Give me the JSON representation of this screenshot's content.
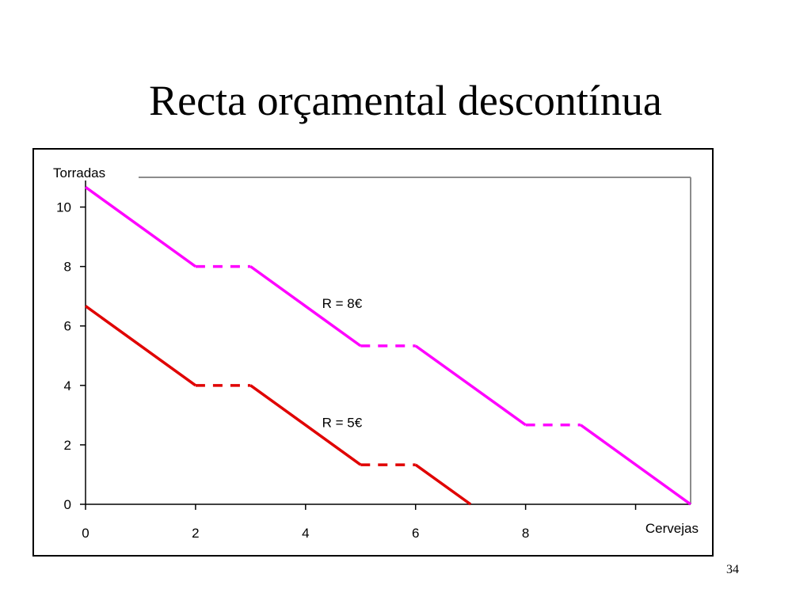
{
  "slide": {
    "title": "Recta orçamental descontínua",
    "page_number": "34"
  },
  "chart_data": {
    "type": "line",
    "xlabel": "Cervejas",
    "ylabel": "Torradas",
    "xlim": [
      0,
      11
    ],
    "ylim": [
      0,
      11
    ],
    "x_ticks": [
      0,
      2,
      4,
      6,
      8,
      10
    ],
    "x_tick_labels": [
      "0",
      "2",
      "4",
      "6",
      "8",
      ""
    ],
    "y_ticks": [
      0,
      2,
      4,
      6,
      8,
      10
    ],
    "y_tick_labels": [
      "0",
      "2",
      "4",
      "6",
      "8",
      "10"
    ],
    "grid": false,
    "series": [
      {
        "name": "R = 8€",
        "color": "#ff00ff",
        "segments": [
          {
            "style": "solid",
            "points": [
              [
                0,
                10.67
              ],
              [
                2,
                8
              ]
            ]
          },
          {
            "style": "dashed",
            "points": [
              [
                2,
                8
              ],
              [
                3,
                8
              ]
            ]
          },
          {
            "style": "solid",
            "points": [
              [
                3,
                8
              ],
              [
                5,
                5.33
              ]
            ]
          },
          {
            "style": "dashed",
            "points": [
              [
                5,
                5.33
              ],
              [
                6,
                5.33
              ]
            ]
          },
          {
            "style": "solid",
            "points": [
              [
                6,
                5.33
              ],
              [
                8,
                2.67
              ]
            ]
          },
          {
            "style": "dashed",
            "points": [
              [
                8,
                2.67
              ],
              [
                9,
                2.67
              ]
            ]
          },
          {
            "style": "solid",
            "points": [
              [
                9,
                2.67
              ],
              [
                11,
                0
              ]
            ]
          }
        ]
      },
      {
        "name": "R = 5€",
        "color": "#e00000",
        "segments": [
          {
            "style": "solid",
            "points": [
              [
                0,
                6.67
              ],
              [
                2,
                4
              ]
            ]
          },
          {
            "style": "dashed",
            "points": [
              [
                2,
                4
              ],
              [
                3,
                4
              ]
            ]
          },
          {
            "style": "solid",
            "points": [
              [
                3,
                4
              ],
              [
                5,
                1.33
              ]
            ]
          },
          {
            "style": "dashed",
            "points": [
              [
                5,
                1.33
              ],
              [
                6,
                1.33
              ]
            ]
          },
          {
            "style": "solid",
            "points": [
              [
                6,
                1.33
              ],
              [
                7,
                0
              ]
            ]
          }
        ]
      }
    ],
    "annotations": [
      {
        "text": "R = 8€",
        "x": 4.3,
        "y": 6.6
      },
      {
        "text": "R = 5€",
        "x": 4.3,
        "y": 2.6
      }
    ]
  }
}
